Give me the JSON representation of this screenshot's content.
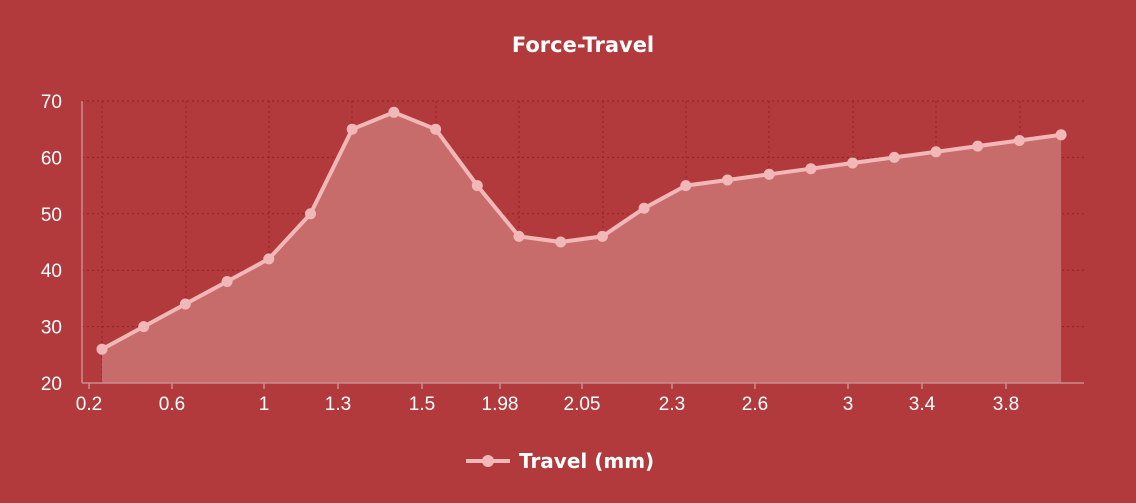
{
  "chart_data": {
    "type": "area",
    "title": "Force-Travel",
    "xlabel": "",
    "ylabel": "",
    "ylim": [
      20,
      70
    ],
    "yticks": [
      20,
      30,
      40,
      50,
      60,
      70
    ],
    "grid": true,
    "legend_position": "bottom-center",
    "x_tick_labels": [
      "0.2",
      "0.6",
      "1",
      "1.3",
      "1.5",
      "1.98",
      "2.05",
      "2.3",
      "2.6",
      "3",
      "3.4",
      "3.8"
    ],
    "series": [
      {
        "name": "Travel (mm)",
        "values": [
          26,
          30,
          34,
          38,
          42,
          50,
          65,
          68,
          65,
          55,
          46,
          45,
          46,
          51,
          55,
          56,
          57,
          58,
          59,
          60,
          61,
          62,
          63,
          64
        ]
      }
    ],
    "colors": {
      "background": "#b23a3c",
      "line": "#f2b8b8",
      "fill": "#c86b6b",
      "text": "#ffffff"
    }
  }
}
